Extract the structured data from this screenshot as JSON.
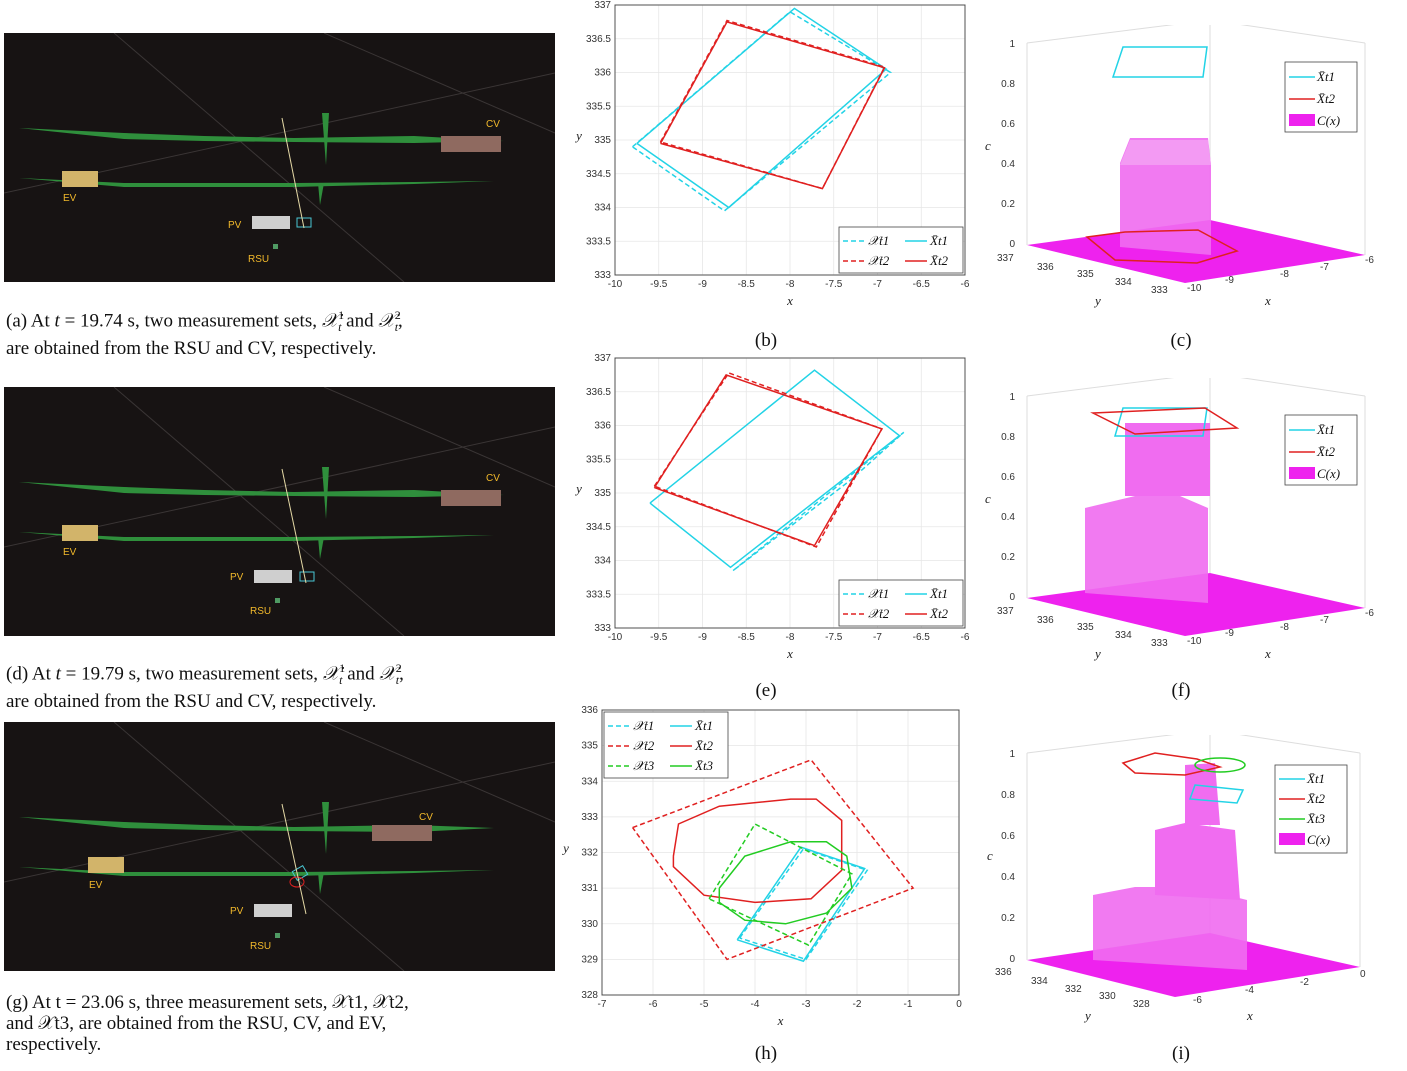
{
  "scenes": [
    {
      "labels": {
        "cv": "CV",
        "ev": "EV",
        "pv": "PV",
        "rsu": "RSU"
      }
    },
    {
      "labels": {
        "cv": "CV",
        "ev": "EV",
        "pv": "PV",
        "rsu": "RSU"
      }
    },
    {
      "labels": {
        "cv": "CV",
        "ev": "EV",
        "pv": "PV",
        "rsu": "RSU"
      }
    }
  ],
  "captions": {
    "a": {
      "pre": "(a) At ",
      "t": "t",
      "mid": " = 19.74 s, two measurement sets, ",
      "x1": "𝒳",
      "sup1": "1",
      "and": " and ",
      "x2": "𝒳",
      "sup2": "2",
      "post": ",",
      "line2": "are obtained from the RSU and CV, respectively.",
      "sub": "t"
    },
    "d": {
      "pre": "(d) At ",
      "t": "t",
      "mid": " = 19.79 s, two measurement sets, ",
      "x1": "𝒳",
      "sup1": "1",
      "and": " and ",
      "x2": "𝒳",
      "sup2": "2",
      "post": ",",
      "line2": "are obtained from the RSU and CV, respectively.",
      "sub": "t"
    },
    "g": {
      "line1": "(g) At t = 23.06 s, three measurement sets, 𝒳t1, 𝒳t2,",
      "line2": "and 𝒳t3, are obtained from the RSU, CV, and EV,",
      "line3": "respectively."
    },
    "b": "(b)",
    "c": "(c)",
    "e": "(e)",
    "f": "(f)",
    "h": "(h)",
    "i": "(i)"
  },
  "chart_data": [
    {
      "type": "line",
      "panel": "b",
      "xlabel": "x",
      "ylabel": "y",
      "xlim": [
        -10,
        -6
      ],
      "ylim": [
        333,
        337
      ],
      "xticks": [
        "-10",
        "-9.5",
        "-9",
        "-8.5",
        "-8",
        "-7.5",
        "-7",
        "-6.5",
        "-6"
      ],
      "yticks": [
        "333",
        "333.5",
        "334",
        "334.5",
        "335",
        "335.5",
        "336",
        "336.5",
        "337"
      ],
      "grid": true,
      "legend": {
        "placement": "bottom-right",
        "entries": [
          "𝒳t1",
          "X̄t1",
          "𝒳t2",
          "X̄t2"
        ]
      },
      "series": [
        {
          "style": "dashed",
          "color": "#22d3e6",
          "points": [
            [
              -9.8,
              334.9
            ],
            [
              -8,
              336.9
            ],
            [
              -6.85,
              336
            ],
            [
              -8.75,
              333.95
            ],
            [
              -9.8,
              334.9
            ]
          ]
        },
        {
          "style": "solid",
          "color": "#22d3e6",
          "points": [
            [
              -9.75,
              334.95
            ],
            [
              -7.95,
              336.95
            ],
            [
              -6.9,
              336.05
            ],
            [
              -8.7,
              334.0
            ],
            [
              -9.75,
              334.95
            ]
          ]
        },
        {
          "style": "dashed",
          "color": "#e02020",
          "points": [
            [
              -9.48,
              334.97
            ],
            [
              -8.72,
              336.77
            ],
            [
              -6.92,
              336.08
            ],
            [
              -7.63,
              334.28
            ],
            [
              -9.48,
              334.97
            ]
          ]
        },
        {
          "style": "solid",
          "color": "#e02020",
          "points": [
            [
              -9.48,
              334.95
            ],
            [
              -8.72,
              336.75
            ],
            [
              -6.92,
              336.07
            ],
            [
              -7.63,
              334.28
            ],
            [
              -9.48,
              334.95
            ]
          ]
        }
      ]
    },
    {
      "type": "line",
      "panel": "e",
      "xlabel": "x",
      "ylabel": "y",
      "xlim": [
        -10,
        -6
      ],
      "ylim": [
        333,
        337
      ],
      "xticks": [
        "-10",
        "-9.5",
        "-9",
        "-8.5",
        "-8",
        "-7.5",
        "-7",
        "-6.5",
        "-6"
      ],
      "yticks": [
        "333",
        "333.5",
        "334",
        "334.5",
        "335",
        "335.5",
        "336",
        "336.5",
        "337"
      ],
      "grid": true,
      "legend": {
        "placement": "bottom-right",
        "entries": [
          "𝒳t1",
          "X̄t1",
          "𝒳t2",
          "X̄t2"
        ]
      },
      "series": [
        {
          "style": "dashed",
          "color": "#22d3e6",
          "points": [
            [
              -8.65,
              333.85
            ],
            [
              -6.7,
              335.9
            ],
            [
              -7.3,
              335.2
            ],
            [
              -8.65,
              333.85
            ]
          ]
        },
        {
          "style": "solid",
          "color": "#22d3e6",
          "points": [
            [
              -9.6,
              334.85
            ],
            [
              -7.72,
              336.82
            ],
            [
              -6.75,
              335.85
            ],
            [
              -8.68,
              333.9
            ],
            [
              -9.6,
              334.85
            ]
          ]
        },
        {
          "style": "dashed",
          "color": "#e02020",
          "points": [
            [
              -9.55,
              335.1
            ],
            [
              -8.7,
              336.78
            ],
            [
              -6.95,
              335.95
            ],
            [
              -7.7,
              334.2
            ],
            [
              -9.55,
              335.1
            ]
          ]
        },
        {
          "style": "solid",
          "color": "#e02020",
          "points": [
            [
              -9.55,
              335.08
            ],
            [
              -8.73,
              336.75
            ],
            [
              -6.95,
              335.95
            ],
            [
              -7.72,
              334.22
            ],
            [
              -9.55,
              335.08
            ]
          ]
        }
      ]
    },
    {
      "type": "line",
      "panel": "h",
      "xlabel": "x",
      "ylabel": "y",
      "xlim": [
        -7,
        0
      ],
      "ylim": [
        328,
        336
      ],
      "xticks": [
        "-7",
        "-6",
        "-5",
        "-4",
        "-3",
        "-2",
        "-1",
        "0"
      ],
      "yticks": [
        "328",
        "329",
        "330",
        "331",
        "332",
        "333",
        "334",
        "335",
        "336"
      ],
      "grid": true,
      "legend": {
        "placement": "top-left",
        "entries": [
          "𝒳t1",
          "X̄t1",
          "𝒳t2",
          "X̄t2",
          "𝒳t3",
          "X̄t3"
        ]
      },
      "series": [
        {
          "style": "dashed",
          "color": "#22d3e6",
          "points": [
            [
              -4.3,
              329.6
            ],
            [
              -3.05,
              332.1
            ],
            [
              -1.8,
              331.5
            ],
            [
              -3,
              329.0
            ],
            [
              -4.3,
              329.6
            ]
          ]
        },
        {
          "style": "solid",
          "color": "#22d3e6",
          "points": [
            [
              -4.35,
              329.55
            ],
            [
              -3.1,
              332.15
            ],
            [
              -1.85,
              331.55
            ],
            [
              -3.05,
              328.95
            ],
            [
              -4.35,
              329.55
            ]
          ]
        },
        {
          "style": "dashed",
          "color": "#e02020",
          "points": [
            [
              -6.4,
              332.7
            ],
            [
              -2.9,
              334.6
            ],
            [
              -0.9,
              331.0
            ],
            [
              -4.55,
              329.0
            ],
            [
              -6.4,
              332.7
            ]
          ]
        },
        {
          "style": "solid",
          "color": "#e02020",
          "points": [
            [
              -5.6,
              331.9
            ],
            [
              -5.5,
              332.8
            ],
            [
              -4.7,
              333.3
            ],
            [
              -3.3,
              333.5
            ],
            [
              -2.8,
              333.5
            ],
            [
              -2.3,
              332.9
            ],
            [
              -2.3,
              331.5
            ],
            [
              -2.9,
              330.7
            ],
            [
              -4.0,
              330.6
            ],
            [
              -5.0,
              330.8
            ],
            [
              -5.6,
              331.6
            ],
            [
              -5.6,
              331.9
            ]
          ]
        },
        {
          "style": "dashed",
          "color": "#22cc22",
          "points": [
            [
              -4.9,
              330.7
            ],
            [
              -4.0,
              332.8
            ],
            [
              -2.1,
              331.4
            ],
            [
              -2.95,
              329.4
            ],
            [
              -4.9,
              330.7
            ]
          ]
        },
        {
          "style": "solid",
          "color": "#22cc22",
          "points": [
            [
              -4.7,
              331.0
            ],
            [
              -4.2,
              331.9
            ],
            [
              -3.3,
              332.3
            ],
            [
              -2.6,
              332.3
            ],
            [
              -2.2,
              331.9
            ],
            [
              -2.1,
              331.0
            ],
            [
              -2.6,
              330.3
            ],
            [
              -3.4,
              330.0
            ],
            [
              -4.2,
              330.1
            ],
            [
              -4.7,
              330.6
            ],
            [
              -4.7,
              331.0
            ]
          ]
        }
      ]
    },
    {
      "type": "surface3d",
      "panel": "c",
      "xlabel": "x",
      "ylabel": "y",
      "zlabel": "c",
      "zticks": [
        "0",
        "0.2",
        "0.4",
        "0.6",
        "0.8",
        "1"
      ],
      "yticks": [
        "337",
        "336",
        "335",
        "334",
        "333"
      ],
      "xticks": [
        "-10",
        "-9",
        "-8",
        "-7",
        "-6"
      ],
      "legend": {
        "placement": "top-right",
        "entries": [
          "X̄t1",
          "X̄t2",
          "C(x)"
        ]
      }
    },
    {
      "type": "surface3d",
      "panel": "f",
      "xlabel": "x",
      "ylabel": "y",
      "zlabel": "c",
      "zticks": [
        "0",
        "0.2",
        "0.4",
        "0.6",
        "0.8",
        "1"
      ],
      "yticks": [
        "337",
        "336",
        "335",
        "334",
        "333"
      ],
      "xticks": [
        "-10",
        "-9",
        "-8",
        "-7",
        "-6"
      ],
      "legend": {
        "placement": "top-right",
        "entries": [
          "X̄t1",
          "X̄t2",
          "C(x)"
        ]
      }
    },
    {
      "type": "surface3d",
      "panel": "i",
      "xlabel": "x",
      "ylabel": "y",
      "zlabel": "c",
      "zticks": [
        "0",
        "0.2",
        "0.4",
        "0.6",
        "0.8",
        "1"
      ],
      "yticks": [
        "336",
        "334",
        "332",
        "330",
        "328"
      ],
      "xticks": [
        "-6",
        "-4",
        "-2",
        "0"
      ],
      "legend": {
        "placement": "top-right",
        "entries": [
          "X̄t1",
          "X̄t2",
          "X̄t3",
          "C(x)"
        ]
      }
    }
  ]
}
